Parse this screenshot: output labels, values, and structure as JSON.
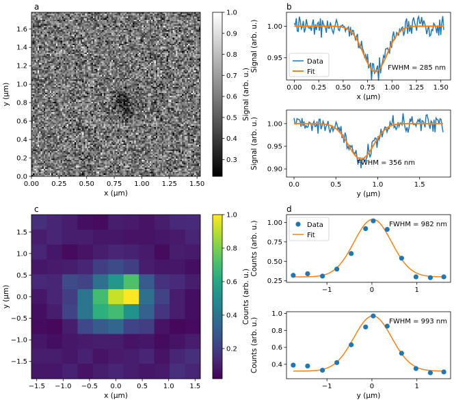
{
  "chart_data": [
    {
      "panel": "a",
      "type": "heatmap",
      "description": "Grayscale noisy signal map with a dark dip centered near x=0.82, y=0.80",
      "xlabel": "x (μm)",
      "ylabel": "y (μm)",
      "xlim": [
        0.0,
        1.53
      ],
      "ylim": [
        0.0,
        1.78
      ],
      "xticks": [
        "0.00",
        "0.25",
        "0.50",
        "0.75",
        "1.00",
        "1.25",
        "1.50"
      ],
      "yticks": [
        "0.0",
        "0.2",
        "0.4",
        "0.6",
        "0.8",
        "1.0",
        "1.2",
        "1.4",
        "1.6"
      ],
      "dip_center": [
        0.82,
        0.8
      ],
      "colorbar": {
        "label": "Signal (arb. u.)",
        "range": [
          0.22,
          1.0
        ],
        "ticks": [
          "0.3",
          "0.4",
          "0.5",
          "0.6",
          "0.7",
          "0.8",
          "0.9",
          "1.0"
        ],
        "colormap": "gray"
      }
    },
    {
      "panel": "b-top",
      "type": "line",
      "xlabel": "x (μm)",
      "ylabel": "Signal (arb. u.)",
      "xlim": [
        -0.08,
        1.6
      ],
      "ylim": [
        0.915,
        1.022
      ],
      "xticks": [
        "0.00",
        "0.25",
        "0.50",
        "0.75",
        "1.00",
        "1.25",
        "1.50"
      ],
      "yticks": [
        "0.95",
        "1.00"
      ],
      "series": [
        {
          "name": "Data",
          "color": "#1f77b4",
          "x_range": [
            0.0,
            1.53
          ],
          "noise": 0.008
        },
        {
          "name": "Fit",
          "color": "#ff7f0e",
          "model": "gaussian_dip",
          "baseline": 1.0,
          "depth": 0.072,
          "center": 0.83,
          "fwhm_um": 0.285
        }
      ],
      "legend": [
        "Data",
        "Fit"
      ],
      "legend_position": "lower-left",
      "annotation": "FWHM = 285 nm"
    },
    {
      "panel": "b-bottom",
      "type": "line",
      "xlabel": "y (μm)",
      "ylabel": "Signal (arb. u.)",
      "xlim": [
        -0.09,
        1.87
      ],
      "ylim": [
        0.882,
        1.03
      ],
      "xticks": [
        "0.0",
        "0.5",
        "1.0",
        "1.5"
      ],
      "yticks": [
        "0.90",
        "0.95",
        "1.00"
      ],
      "series": [
        {
          "name": "Data",
          "color": "#1f77b4",
          "x_range": [
            0.0,
            1.78
          ],
          "noise": 0.009
        },
        {
          "name": "Fit",
          "color": "#ff7f0e",
          "model": "gaussian_dip",
          "baseline": 1.0,
          "depth": 0.078,
          "center": 0.8,
          "fwhm_um": 0.356
        }
      ],
      "annotation": "FWHM = 356 nm"
    },
    {
      "panel": "c",
      "type": "heatmap",
      "xlabel": "x (μm)",
      "ylabel": "y (μm)",
      "xlim": [
        -1.6,
        1.6
      ],
      "ylim": [
        -1.9,
        1.9
      ],
      "xticks": [
        "−1.5",
        "−1.0",
        "−0.5",
        "0.0",
        "0.5",
        "1.0",
        "1.5"
      ],
      "yticks": [
        "−1.5",
        "−1.0",
        "−0.5",
        "0.0",
        "0.5",
        "1.0",
        "1.5"
      ],
      "grid_rows_top_to_bottom": [
        [
          0.15,
          0.12,
          0.1,
          0.06,
          0.05,
          0.1,
          0.09,
          0.07,
          0.1,
          0.13,
          0.14
        ],
        [
          0.1,
          0.12,
          0.1,
          0.1,
          0.08,
          0.08,
          0.07,
          0.07,
          0.08,
          0.09,
          0.12
        ],
        [
          0.12,
          0.08,
          0.05,
          0.07,
          0.1,
          0.12,
          0.11,
          0.09,
          0.05,
          0.1,
          0.09
        ],
        [
          0.08,
          0.09,
          0.1,
          0.12,
          0.2,
          0.24,
          0.2,
          0.1,
          0.08,
          0.08,
          0.06
        ],
        [
          0.13,
          0.12,
          0.24,
          0.22,
          0.38,
          0.54,
          0.72,
          0.3,
          0.16,
          0.14,
          0.1
        ],
        [
          0.08,
          0.12,
          0.2,
          0.4,
          0.7,
          0.92,
          1.0,
          0.38,
          0.22,
          0.1,
          0.06
        ],
        [
          0.06,
          0.1,
          0.22,
          0.4,
          0.64,
          0.7,
          0.52,
          0.32,
          0.17,
          0.1,
          0.06
        ],
        [
          0.05,
          0.04,
          0.1,
          0.23,
          0.3,
          0.34,
          0.22,
          0.2,
          0.07,
          0.04,
          0.05
        ],
        [
          0.08,
          0.06,
          0.08,
          0.09,
          0.1,
          0.1,
          0.07,
          0.08,
          0.05,
          0.07,
          0.1
        ],
        [
          0.1,
          0.1,
          0.08,
          0.11,
          0.07,
          0.09,
          0.1,
          0.12,
          0.07,
          0.12,
          0.15
        ],
        [
          0.08,
          0.08,
          0.11,
          0.07,
          0.1,
          0.12,
          0.1,
          0.08,
          0.09,
          0.15,
          0.12
        ]
      ],
      "colorbar": {
        "label": "Counts (arb. u.)",
        "range": [
          0.02,
          1.0
        ],
        "ticks": [
          "0.2",
          "0.4",
          "0.6",
          "0.8",
          "1.0"
        ],
        "colormap": "viridis"
      }
    },
    {
      "panel": "d-top",
      "type": "scatter",
      "xlabel": "",
      "ylabel": "Counts (arb. u.)",
      "xlim": [
        -1.9,
        1.75
      ],
      "ylim": [
        0.23,
        1.1
      ],
      "xticks": [
        "−1",
        "0",
        "1"
      ],
      "yticks": [
        "0.25",
        "0.50",
        "0.75",
        "1.00"
      ],
      "series": [
        {
          "name": "Data",
          "color": "#1f77b4",
          "x": [
            -1.75,
            -1.43,
            -1.1,
            -0.78,
            -0.46,
            -0.14,
            0.03,
            0.34,
            0.66,
            0.98,
            1.3,
            1.6
          ],
          "y": [
            0.32,
            0.34,
            0.31,
            0.4,
            0.6,
            0.92,
            1.02,
            0.91,
            0.54,
            0.3,
            0.29,
            0.3
          ]
        },
        {
          "name": "Fit",
          "color": "#ff7f0e",
          "model": "gaussian",
          "baseline": 0.3,
          "amplitude": 0.74,
          "center": 0.02,
          "fwhm_um": 0.982
        }
      ],
      "legend": [
        "Data",
        "Fit"
      ],
      "legend_position": "upper-left",
      "annotation": "FWHM = 982 nm"
    },
    {
      "panel": "d-bottom",
      "type": "scatter",
      "xlabel": "y (μm)",
      "ylabel": "Counts (arb. u.)",
      "xlim": [
        -1.9,
        1.75
      ],
      "ylim": [
        0.23,
        1.02
      ],
      "xticks": [
        "−1",
        "0",
        "1"
      ],
      "yticks": [
        "0.4",
        "0.6",
        "0.8",
        "1.0"
      ],
      "series": [
        {
          "name": "Data",
          "color": "#1f77b4",
          "x": [
            -1.75,
            -1.43,
            -1.1,
            -0.78,
            -0.46,
            -0.14,
            0.03,
            0.34,
            0.66,
            0.98,
            1.3,
            1.6
          ],
          "y": [
            0.39,
            0.38,
            0.33,
            0.42,
            0.63,
            0.84,
            0.97,
            0.85,
            0.53,
            0.35,
            0.3,
            0.31
          ]
        },
        {
          "name": "Fit",
          "color": "#ff7f0e",
          "model": "gaussian",
          "baseline": 0.32,
          "amplitude": 0.65,
          "center": 0.02,
          "fwhm_um": 0.993
        }
      ],
      "annotation": "FWHM = 993 nm"
    }
  ],
  "panel_labels": [
    "a",
    "b",
    "c",
    "d"
  ],
  "legend_labels": {
    "data": "Data",
    "fit": "Fit"
  }
}
